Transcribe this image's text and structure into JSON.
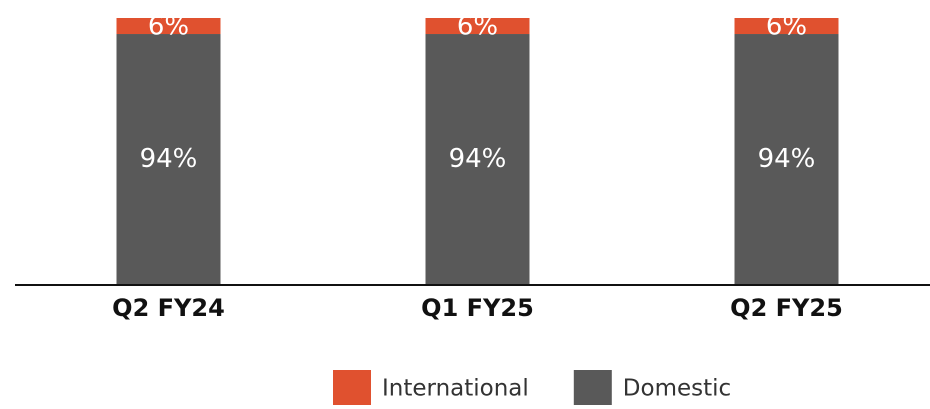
{
  "chart_data": {
    "type": "stacked_bar",
    "categories": [
      "Q2 FY24",
      "Q1 FY25",
      "Q2 FY25"
    ],
    "series": [
      {
        "name": "Domestic",
        "color": "#595959",
        "values": [
          94,
          94,
          94
        ],
        "value_labels": [
          "94%",
          "94%",
          "94%"
        ]
      },
      {
        "name": "International",
        "color": "#e0512f",
        "values": [
          6,
          6,
          6
        ],
        "value_labels": [
          "6%",
          "6%",
          "6%"
        ]
      }
    ],
    "ylim": [
      0,
      100
    ]
  }
}
